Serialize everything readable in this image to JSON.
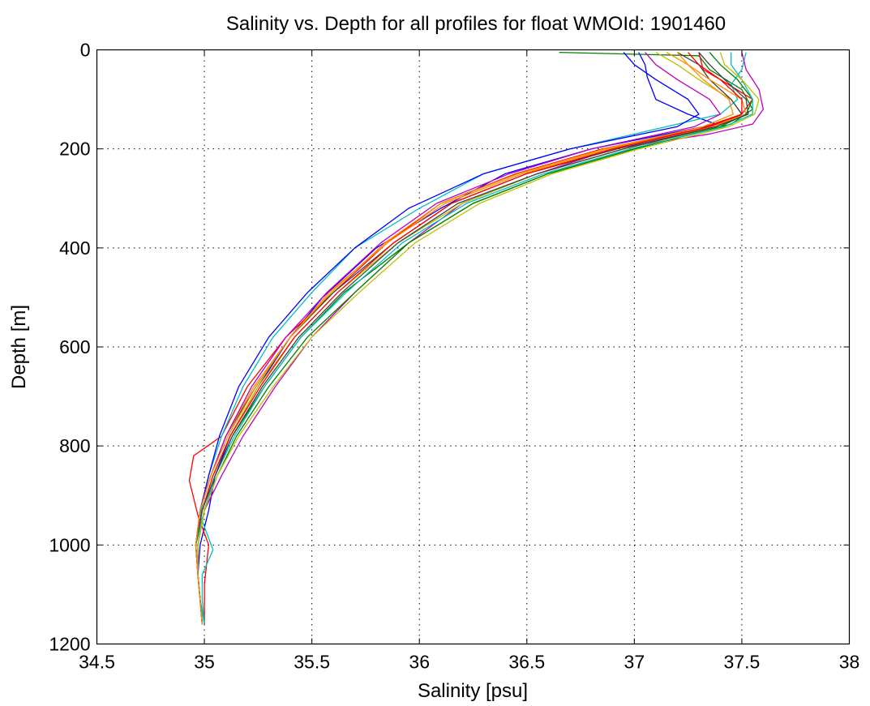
{
  "chart_data": {
    "type": "line",
    "title": "Salinity vs. Depth for all profiles for float WMOId: 1901460",
    "xlabel": "Salinity [psu]",
    "ylabel": "Depth [m]",
    "xlim": [
      34.5,
      38
    ],
    "ylim": [
      0,
      1200
    ],
    "y_reversed": true,
    "grid": true,
    "legend": "none",
    "x_ticks": [
      "34.5",
      "35",
      "35.5",
      "36",
      "36.5",
      "37",
      "37.5",
      "38"
    ],
    "y_ticks": [
      "0",
      "200",
      "400",
      "600",
      "800",
      "1000",
      "1200"
    ],
    "colors": [
      "#0000ff",
      "#008000",
      "#ff0000",
      "#00bfbf",
      "#bf00bf",
      "#bfbf00",
      "#404040",
      "#ff8c00"
    ],
    "series": [
      {
        "x": [
          37.02,
          37.05,
          37.06,
          37.1,
          37.25,
          37.38,
          36.8,
          36.4,
          36.1,
          35.8,
          35.55,
          35.4,
          35.25,
          35.12,
          35.05,
          35.02,
          34.98,
          34.97,
          34.98,
          34.99
        ],
        "y": [
          5,
          30,
          55,
          100,
          130,
          150,
          200,
          250,
          320,
          400,
          500,
          580,
          680,
          780,
          860,
          930,
          1000,
          1060,
          1110,
          1160
        ]
      },
      {
        "x": [
          36.65,
          37.3,
          37.35,
          37.5,
          37.55,
          37.45,
          37.0,
          36.6,
          36.25,
          35.95,
          35.65,
          35.45,
          35.28,
          35.13,
          35.05,
          35.0,
          34.96,
          34.97,
          34.98,
          35.0
        ],
        "y": [
          5,
          12,
          40,
          80,
          120,
          150,
          200,
          250,
          310,
          390,
          490,
          580,
          680,
          780,
          860,
          930,
          1000,
          1060,
          1110,
          1160
        ]
      },
      {
        "x": [
          37.3,
          37.32,
          37.4,
          37.55,
          37.5,
          37.3,
          36.85,
          36.45,
          36.1,
          35.85,
          35.6,
          35.38,
          35.2,
          35.08,
          34.95,
          34.93,
          34.97,
          35.02,
          35.0,
          35.0
        ],
        "y": [
          5,
          40,
          60,
          100,
          130,
          160,
          200,
          250,
          310,
          390,
          490,
          580,
          680,
          780,
          820,
          870,
          940,
          1000,
          1080,
          1160
        ]
      },
      {
        "x": [
          37.52,
          37.5,
          37.45,
          37.48,
          37.4,
          37.1,
          36.7,
          36.3,
          36.0,
          35.7,
          35.5,
          35.32,
          35.18,
          35.08,
          35.02,
          34.98,
          35.04,
          34.99,
          34.99,
          35.0
        ],
        "y": [
          5,
          40,
          70,
          100,
          130,
          160,
          200,
          250,
          320,
          400,
          490,
          580,
          680,
          780,
          860,
          940,
          1010,
          1060,
          1110,
          1160
        ]
      },
      {
        "x": [
          37.5,
          37.52,
          37.58,
          37.6,
          37.55,
          37.35,
          36.9,
          36.55,
          36.2,
          35.95,
          35.7,
          35.5,
          35.33,
          35.18,
          35.08,
          35.0,
          34.97,
          34.97,
          34.98,
          34.99
        ],
        "y": [
          5,
          40,
          80,
          120,
          150,
          170,
          200,
          250,
          310,
          390,
          490,
          580,
          680,
          780,
          860,
          930,
          1000,
          1060,
          1110,
          1160
        ]
      },
      {
        "x": [
          37.1,
          37.2,
          37.3,
          37.45,
          37.5,
          37.4,
          36.95,
          36.55,
          36.2,
          35.9,
          35.62,
          35.42,
          35.25,
          35.12,
          35.04,
          34.99,
          34.96,
          34.97,
          34.98,
          34.99
        ],
        "y": [
          5,
          30,
          60,
          100,
          130,
          155,
          200,
          250,
          310,
          390,
          490,
          580,
          680,
          780,
          860,
          930,
          1000,
          1060,
          1110,
          1160
        ]
      },
      {
        "x": [
          37.2,
          37.3,
          37.35,
          37.45,
          37.5,
          37.38,
          36.92,
          36.5,
          36.15,
          35.88,
          35.6,
          35.4,
          35.24,
          35.1,
          35.03,
          34.98,
          34.96,
          34.97,
          34.98,
          34.99
        ],
        "y": [
          5,
          30,
          60,
          100,
          130,
          155,
          200,
          250,
          310,
          390,
          490,
          580,
          680,
          780,
          860,
          930,
          1000,
          1060,
          1110,
          1160
        ]
      },
      {
        "x": [
          37.15,
          37.25,
          37.35,
          37.5,
          37.52,
          37.36,
          36.88,
          36.48,
          36.12,
          35.85,
          35.58,
          35.4,
          35.23,
          35.1,
          35.03,
          34.98,
          34.96,
          34.97,
          34.98,
          34.99
        ],
        "y": [
          5,
          30,
          60,
          100,
          130,
          155,
          200,
          250,
          310,
          390,
          490,
          580,
          680,
          780,
          860,
          930,
          1000,
          1060,
          1110,
          1160
        ]
      },
      {
        "x": [
          36.95,
          37.0,
          37.1,
          37.25,
          37.3,
          37.2,
          36.7,
          36.3,
          35.95,
          35.7,
          35.48,
          35.3,
          35.16,
          35.07,
          35.02,
          34.98,
          34.96,
          34.97,
          34.98,
          34.99
        ],
        "y": [
          5,
          30,
          60,
          100,
          130,
          155,
          200,
          250,
          320,
          400,
          490,
          580,
          680,
          780,
          860,
          930,
          1000,
          1060,
          1110,
          1160
        ]
      },
      {
        "x": [
          37.35,
          37.4,
          37.48,
          37.55,
          37.52,
          37.4,
          37.0,
          36.6,
          36.25,
          35.95,
          35.7,
          35.48,
          35.3,
          35.15,
          35.06,
          35.0,
          34.97,
          34.97,
          34.98,
          34.99
        ],
        "y": [
          5,
          30,
          60,
          100,
          130,
          155,
          200,
          250,
          310,
          390,
          490,
          580,
          680,
          780,
          860,
          930,
          1000,
          1060,
          1110,
          1160
        ]
      },
      {
        "x": [
          37.25,
          37.3,
          37.4,
          37.5,
          37.5,
          37.35,
          36.9,
          36.5,
          36.15,
          35.88,
          35.62,
          35.42,
          35.26,
          35.12,
          35.04,
          34.99,
          34.96,
          34.97,
          34.98,
          34.99
        ],
        "y": [
          5,
          30,
          60,
          100,
          130,
          155,
          200,
          250,
          310,
          390,
          490,
          580,
          680,
          780,
          860,
          930,
          1000,
          1060,
          1110,
          1160
        ]
      },
      {
        "x": [
          37.45,
          37.45,
          37.5,
          37.55,
          37.55,
          37.42,
          36.98,
          36.58,
          36.22,
          35.92,
          35.66,
          35.45,
          35.28,
          35.14,
          35.05,
          35.0,
          34.96,
          34.97,
          34.98,
          35.0
        ],
        "y": [
          5,
          30,
          60,
          100,
          130,
          155,
          200,
          250,
          310,
          390,
          490,
          580,
          680,
          780,
          860,
          930,
          1000,
          1060,
          1110,
          1160
        ]
      },
      {
        "x": [
          37.05,
          37.1,
          37.2,
          37.35,
          37.4,
          37.28,
          36.8,
          36.42,
          36.08,
          35.82,
          35.57,
          35.38,
          35.22,
          35.1,
          35.03,
          34.98,
          34.96,
          34.97,
          34.98,
          34.99
        ],
        "y": [
          5,
          30,
          60,
          100,
          130,
          155,
          200,
          250,
          310,
          390,
          490,
          580,
          680,
          780,
          860,
          930,
          1000,
          1060,
          1110,
          1160
        ]
      },
      {
        "x": [
          37.4,
          37.42,
          37.5,
          37.58,
          37.56,
          37.44,
          37.02,
          36.62,
          36.28,
          35.98,
          35.72,
          35.5,
          35.32,
          35.16,
          35.06,
          35.0,
          34.97,
          34.97,
          34.98,
          34.99
        ],
        "y": [
          5,
          30,
          60,
          100,
          130,
          155,
          200,
          250,
          310,
          390,
          490,
          580,
          680,
          780,
          860,
          930,
          1000,
          1060,
          1110,
          1160
        ]
      },
      {
        "x": [
          37.3,
          37.35,
          37.42,
          37.52,
          37.53,
          37.38,
          36.95,
          36.55,
          36.18,
          35.9,
          35.64,
          35.44,
          35.27,
          35.13,
          35.05,
          34.99,
          34.96,
          34.97,
          34.98,
          34.99
        ],
        "y": [
          5,
          30,
          60,
          100,
          130,
          155,
          200,
          250,
          310,
          390,
          490,
          580,
          680,
          780,
          860,
          930,
          1000,
          1060,
          1110,
          1160
        ]
      },
      {
        "x": [
          37.2,
          37.25,
          37.32,
          37.44,
          37.46,
          37.32,
          36.86,
          36.46,
          36.1,
          35.84,
          35.59,
          35.4,
          35.24,
          35.11,
          35.03,
          34.98,
          34.96,
          34.97,
          34.98,
          34.99
        ],
        "y": [
          5,
          30,
          60,
          100,
          130,
          155,
          200,
          250,
          310,
          390,
          490,
          580,
          680,
          780,
          860,
          930,
          1000,
          1060,
          1110,
          1160
        ]
      }
    ]
  }
}
